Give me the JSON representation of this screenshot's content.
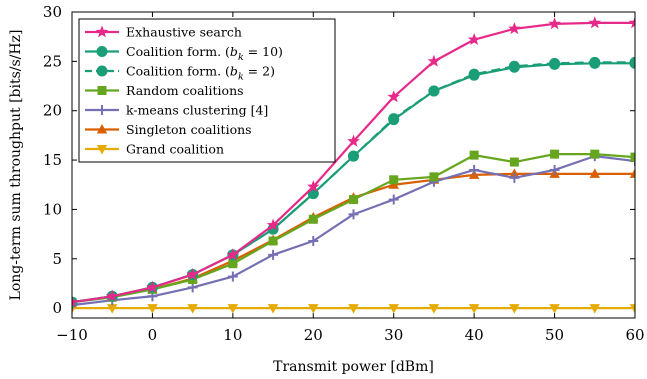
{
  "chart_data": {
    "type": "line",
    "xlabel": "Transmit power [dBm]",
    "ylabel": "Long-term sum throughput [bits/s/Hz]",
    "xlim": [
      -10,
      60
    ],
    "ylim": [
      -1,
      30
    ],
    "xticks": [
      -10,
      0,
      10,
      20,
      30,
      40,
      50,
      60
    ],
    "xtick_labels": [
      "−10",
      "0",
      "10",
      "20",
      "30",
      "40",
      "50",
      "60"
    ],
    "yticks": [
      0,
      5,
      10,
      15,
      20,
      25,
      30
    ],
    "ytick_labels": [
      "0",
      "5",
      "10",
      "15",
      "20",
      "25",
      "30"
    ],
    "grid": false,
    "legend_position": "top-left",
    "x": [
      -10,
      -5,
      0,
      5,
      10,
      15,
      20,
      25,
      30,
      35,
      40,
      45,
      50,
      55,
      60
    ],
    "series": [
      {
        "name": "Exhaustive search",
        "color": "#e7298a",
        "marker": "star",
        "dash": "solid",
        "values": [
          0.6,
          1.2,
          2.1,
          3.4,
          5.4,
          8.4,
          12.3,
          16.9,
          21.4,
          25.0,
          27.2,
          28.3,
          28.8,
          28.9,
          28.9
        ]
      },
      {
        "name": "Coalition form. (b_k = 10)",
        "label_prefix": "Coalition form. (",
        "label_var": "b",
        "label_sub": "k",
        "label_suffix": " = 10)",
        "color": "#1b9e77",
        "marker": "circle",
        "dash": "solid",
        "values": [
          0.6,
          1.2,
          2.1,
          3.4,
          5.4,
          8.0,
          11.6,
          15.4,
          19.1,
          22.0,
          23.6,
          24.4,
          24.7,
          24.8,
          24.8
        ]
      },
      {
        "name": "Coalition form. (b_k = 2)",
        "label_prefix": "Coalition form. (",
        "label_var": "b",
        "label_sub": "k",
        "label_suffix": " = 2)",
        "color": "#1b9e77",
        "marker": "circle",
        "dash": "dashed",
        "values": [
          0.6,
          1.2,
          2.1,
          3.4,
          5.4,
          8.0,
          11.6,
          15.4,
          19.2,
          22.0,
          23.7,
          24.5,
          24.8,
          24.9,
          24.9
        ]
      },
      {
        "name": "Random coalitions",
        "color": "#66a61e",
        "marker": "square",
        "dash": "solid",
        "values": [
          0.6,
          1.1,
          1.9,
          2.9,
          4.5,
          6.8,
          9.0,
          11.0,
          13.0,
          13.3,
          15.5,
          14.8,
          15.6,
          15.6,
          15.3
        ]
      },
      {
        "name": "k-means clustering [4]",
        "color": "#7570b3",
        "marker": "plus",
        "dash": "solid",
        "values": [
          0.3,
          0.8,
          1.2,
          2.1,
          3.2,
          5.4,
          6.8,
          9.5,
          11.0,
          12.8,
          14.0,
          13.2,
          14.0,
          15.4,
          14.9
        ]
      },
      {
        "name": "Singleton coalitions",
        "color": "#d95f02",
        "marker": "triangle-up",
        "dash": "solid",
        "values": [
          0.6,
          1.2,
          1.9,
          3.0,
          4.8,
          6.9,
          9.2,
          11.2,
          12.5,
          13.0,
          13.5,
          13.6,
          13.6,
          13.6,
          13.6
        ]
      },
      {
        "name": "Grand coalition",
        "color": "#e6ab02",
        "marker": "triangle-down",
        "dash": "solid",
        "values": [
          0,
          0,
          0,
          0,
          0,
          0,
          0,
          0,
          0,
          0,
          0,
          0,
          0,
          0,
          0
        ]
      }
    ]
  }
}
